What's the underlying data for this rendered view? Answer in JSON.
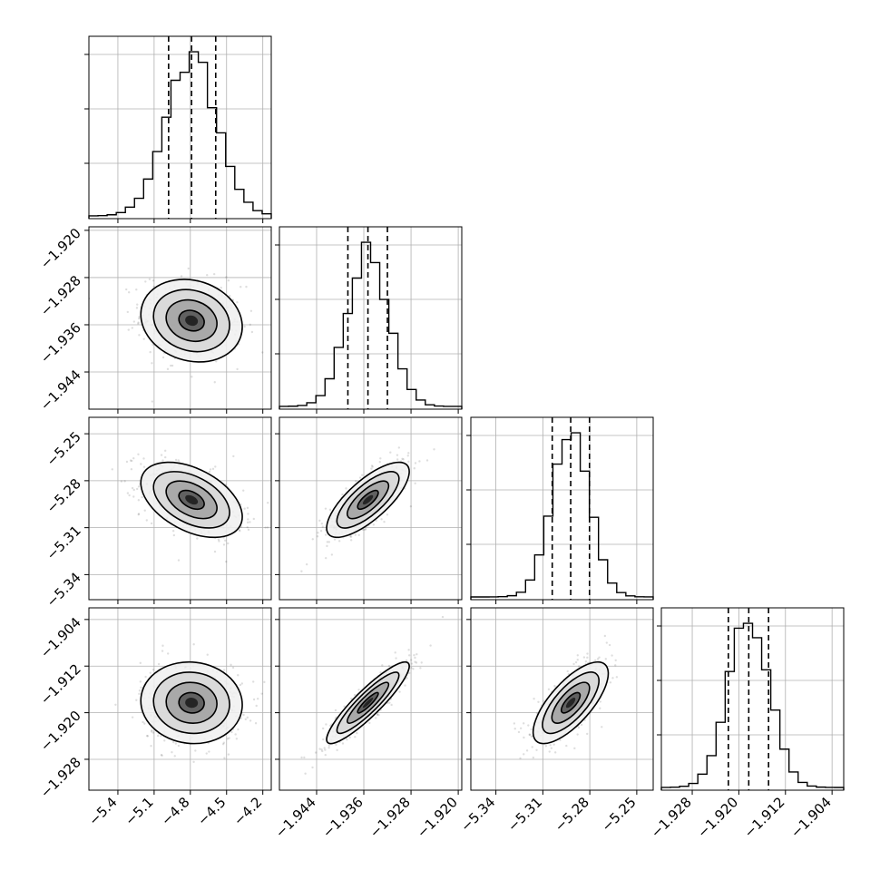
{
  "chart_data": {
    "type": "corner",
    "params": [
      {
        "mean": -4.79,
        "sd": 0.21,
        "q16": -4.98,
        "q50": -4.79,
        "q84": -4.59,
        "lim": [
          -5.64,
          -4.13
        ],
        "ticks": [
          -5.4,
          -5.1,
          -4.8,
          -4.5,
          -4.2
        ],
        "tick_labels": [
          "−5.4",
          "−5.1",
          "−4.8",
          "−4.5",
          "−4.2"
        ]
      },
      {
        "mean": -1.9353,
        "sd": 0.0035,
        "q16": -1.9387,
        "q50": -1.9353,
        "q84": -1.932,
        "lim": [
          -1.9503,
          -1.9194
        ],
        "ticks": [
          -1.944,
          -1.936,
          -1.928,
          -1.92
        ],
        "tick_labels": [
          "−1.944",
          "−1.936",
          "−1.928",
          "−1.920"
        ]
      },
      {
        "mean": -5.2922,
        "sd": 0.012,
        "q16": -5.304,
        "q50": -5.2922,
        "q84": -5.2802,
        "lim": [
          -5.356,
          -5.2395
        ],
        "ticks": [
          -5.34,
          -5.31,
          -5.28,
          -5.25
        ],
        "tick_labels": [
          "−5.34",
          "−5.31",
          "−5.28",
          "−5.25"
        ]
      },
      {
        "mean": -1.9183,
        "sd": 0.0035,
        "q16": -1.9218,
        "q50": -1.9183,
        "q84": -1.9149,
        "lim": [
          -1.9333,
          -1.902
        ],
        "ticks": [
          -1.928,
          -1.92,
          -1.912,
          -1.904
        ],
        "tick_labels": [
          "−1.928",
          "−1.920",
          "−1.912",
          "−1.904"
        ]
      }
    ],
    "correlations": [
      [
        1.0,
        -0.15,
        -0.45,
        -0.05
      ],
      [
        -0.15,
        1.0,
        0.75,
        0.9
      ],
      [
        -0.45,
        0.75,
        1.0,
        0.72
      ],
      [
        -0.05,
        0.9,
        0.72,
        1.0
      ]
    ],
    "contour_levels_sigma": [
      0.5,
      1.0,
      1.5,
      2.0
    ],
    "quantiles": [
      0.16,
      0.5,
      0.84
    ],
    "histogram_bins": 20,
    "grid": true,
    "colors": {
      "points": "#000000",
      "lines": "#000000",
      "grid": "#b0b0b0",
      "background": "#ffffff"
    }
  }
}
